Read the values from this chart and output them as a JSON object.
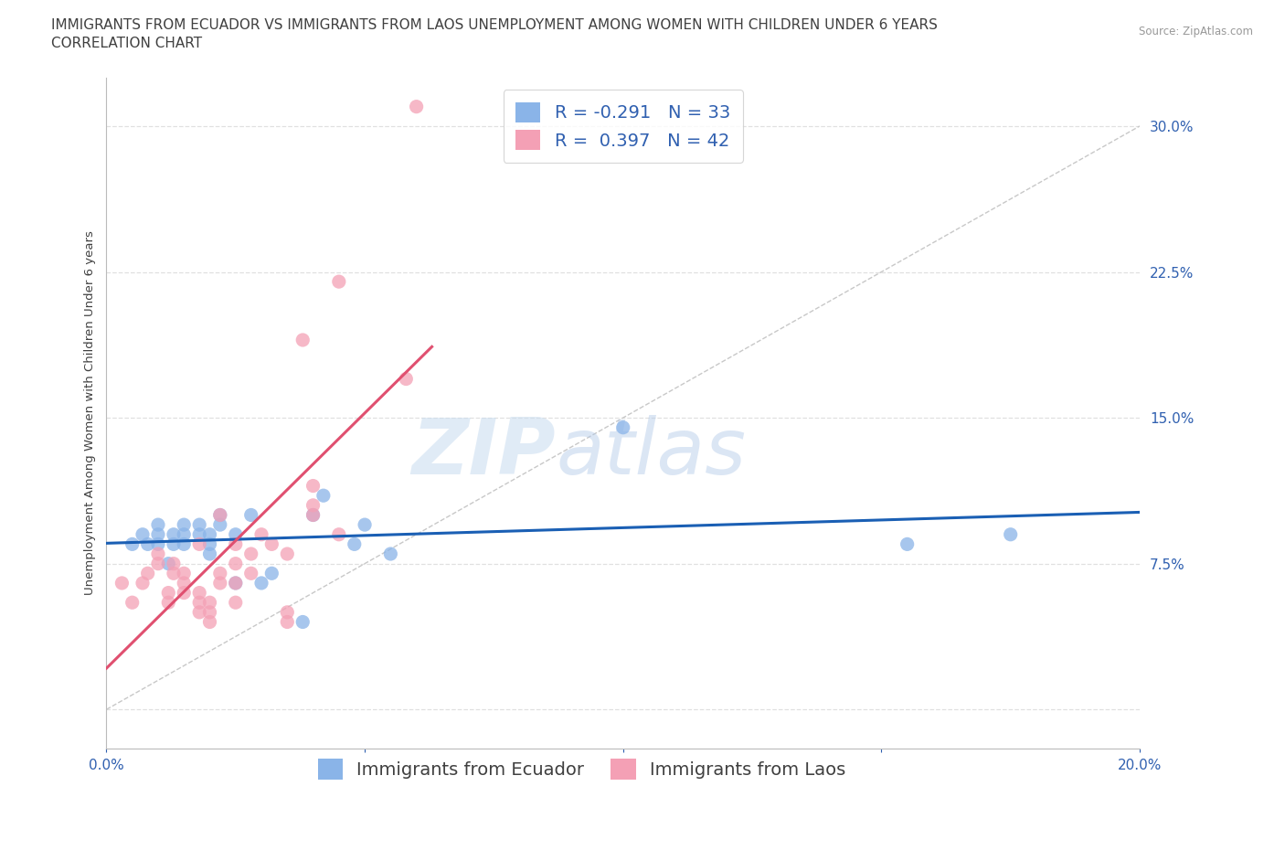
{
  "title_line1": "IMMIGRANTS FROM ECUADOR VS IMMIGRANTS FROM LAOS UNEMPLOYMENT AMONG WOMEN WITH CHILDREN UNDER 6 YEARS",
  "title_line2": "CORRELATION CHART",
  "source": "Source: ZipAtlas.com",
  "ylabel": "Unemployment Among Women with Children Under 6 years",
  "xlim": [
    0.0,
    0.2
  ],
  "ylim": [
    -0.02,
    0.325
  ],
  "xticks": [
    0.0,
    0.05,
    0.1,
    0.15,
    0.2
  ],
  "yticks": [
    0.0,
    0.075,
    0.15,
    0.225,
    0.3
  ],
  "r_ecuador": -0.291,
  "n_ecuador": 33,
  "r_laos": 0.397,
  "n_laos": 42,
  "ecuador_color": "#8ab4e8",
  "laos_color": "#f4a0b5",
  "ecuador_line_color": "#1a5fb4",
  "laos_line_color": "#e05070",
  "ref_line_color": "#c8c8c8",
  "watermark_zip": "ZIP",
  "watermark_atlas": "atlas",
  "ecuador_scatter_x": [
    0.005,
    0.007,
    0.008,
    0.01,
    0.01,
    0.01,
    0.012,
    0.013,
    0.013,
    0.015,
    0.015,
    0.015,
    0.018,
    0.018,
    0.02,
    0.02,
    0.02,
    0.022,
    0.022,
    0.025,
    0.025,
    0.028,
    0.03,
    0.032,
    0.038,
    0.04,
    0.042,
    0.048,
    0.05,
    0.055,
    0.1,
    0.155,
    0.175
  ],
  "ecuador_scatter_y": [
    0.085,
    0.09,
    0.085,
    0.085,
    0.09,
    0.095,
    0.075,
    0.085,
    0.09,
    0.085,
    0.09,
    0.095,
    0.09,
    0.095,
    0.08,
    0.085,
    0.09,
    0.095,
    0.1,
    0.065,
    0.09,
    0.1,
    0.065,
    0.07,
    0.045,
    0.1,
    0.11,
    0.085,
    0.095,
    0.08,
    0.145,
    0.085,
    0.09
  ],
  "laos_scatter_x": [
    0.003,
    0.005,
    0.007,
    0.008,
    0.01,
    0.01,
    0.012,
    0.012,
    0.013,
    0.013,
    0.015,
    0.015,
    0.015,
    0.018,
    0.018,
    0.018,
    0.018,
    0.02,
    0.02,
    0.02,
    0.022,
    0.022,
    0.022,
    0.025,
    0.025,
    0.025,
    0.025,
    0.028,
    0.028,
    0.03,
    0.032,
    0.035,
    0.035,
    0.035,
    0.038,
    0.04,
    0.04,
    0.04,
    0.045,
    0.045,
    0.058,
    0.06
  ],
  "laos_scatter_y": [
    0.065,
    0.055,
    0.065,
    0.07,
    0.075,
    0.08,
    0.055,
    0.06,
    0.07,
    0.075,
    0.06,
    0.065,
    0.07,
    0.05,
    0.055,
    0.06,
    0.085,
    0.045,
    0.05,
    0.055,
    0.065,
    0.07,
    0.1,
    0.055,
    0.065,
    0.075,
    0.085,
    0.07,
    0.08,
    0.09,
    0.085,
    0.045,
    0.05,
    0.08,
    0.19,
    0.1,
    0.105,
    0.115,
    0.09,
    0.22,
    0.17,
    0.31
  ],
  "background_color": "#ffffff",
  "grid_color": "#e0e0e0",
  "title_fontsize": 11,
  "axis_label_fontsize": 9.5,
  "tick_fontsize": 11,
  "legend_fontsize": 14
}
